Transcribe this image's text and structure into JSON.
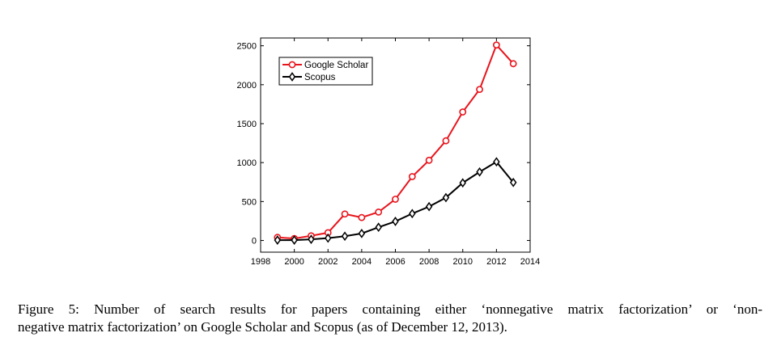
{
  "caption": {
    "line1": "Figure 5: Number of search results for papers containing either ‘nonnegative matrix factorization’ or ‘non-",
    "line2": "negative matrix factorization’ on Google Scholar and Scopus (as of December 12, 2013)."
  },
  "chart_data": {
    "type": "line",
    "title": "",
    "xlabel": "",
    "ylabel": "",
    "xlim": [
      1998,
      2014
    ],
    "ylim": [
      -150,
      2600
    ],
    "x_ticks": [
      "1998",
      "2000",
      "2002",
      "2004",
      "2006",
      "2008",
      "2010",
      "2012",
      "2014"
    ],
    "y_ticks": [
      "0",
      "500",
      "1000",
      "1500",
      "2000",
      "2500"
    ],
    "grid": false,
    "legend_position": "top-left",
    "x": [
      1999,
      2000,
      2001,
      2002,
      2003,
      2004,
      2005,
      2006,
      2007,
      2008,
      2009,
      2010,
      2011,
      2012,
      2013
    ],
    "series": [
      {
        "name": "Google Scholar",
        "color": "#e8141c",
        "marker": "circle",
        "values": [
          40,
          25,
          60,
          100,
          340,
          295,
          365,
          530,
          820,
          1030,
          1280,
          1650,
          1940,
          2510,
          2270
        ]
      },
      {
        "name": "Scopus",
        "color": "#000000",
        "marker": "diamond",
        "values": [
          5,
          5,
          15,
          30,
          55,
          90,
          170,
          245,
          345,
          435,
          550,
          740,
          880,
          1010,
          745
        ]
      }
    ]
  }
}
